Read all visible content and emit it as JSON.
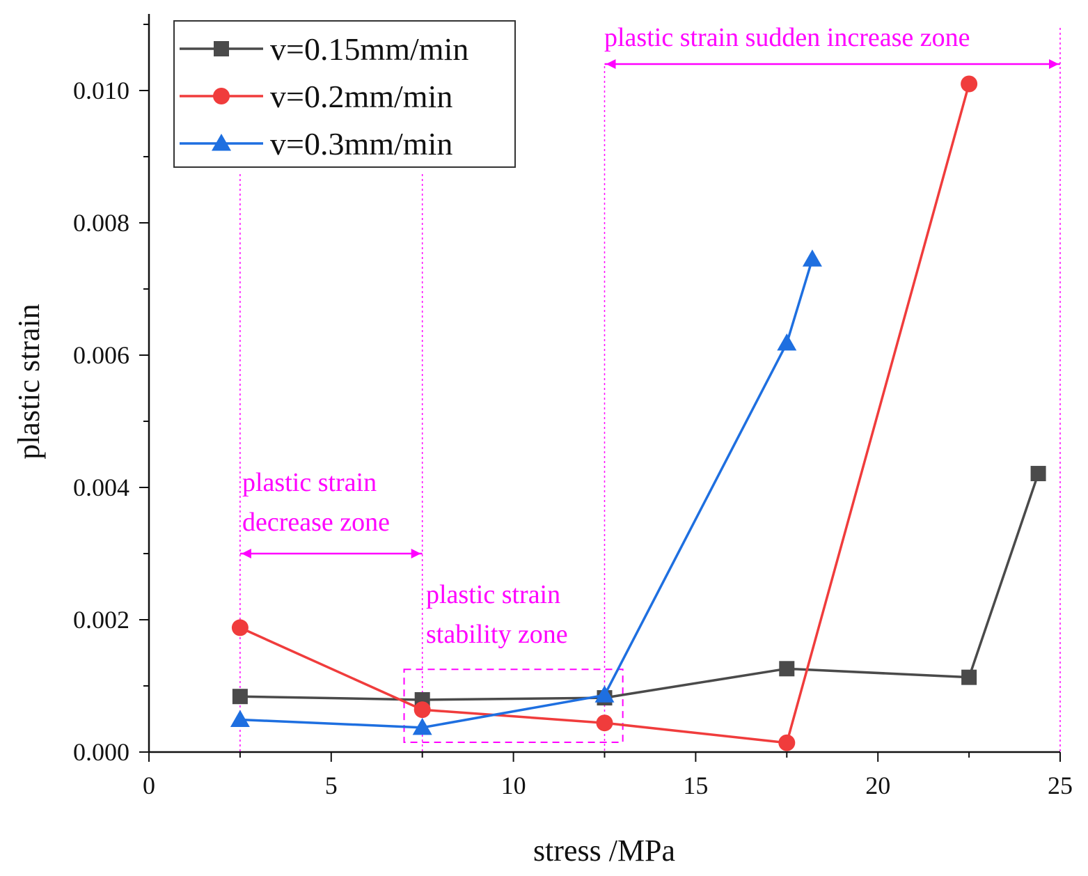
{
  "chart_data": {
    "type": "line",
    "xlabel": "stress /MPa",
    "ylabel": "plastic strain",
    "xlim": [
      0,
      25
    ],
    "ylim": [
      0,
      0.011
    ],
    "x_ticks": [
      0,
      5,
      10,
      15,
      20,
      25
    ],
    "y_ticks": [
      0.0,
      0.002,
      0.004,
      0.006,
      0.008,
      0.01
    ],
    "x_tick_labels": [
      "0",
      "5",
      "10",
      "15",
      "20",
      "25"
    ],
    "y_tick_labels": [
      "0.000",
      "0.002",
      "0.004",
      "0.006",
      "0.008",
      "0.010"
    ],
    "legend_position": "top-left",
    "series": [
      {
        "name": "v=0.15mm/min",
        "color": "#4a4a4a",
        "marker": "square",
        "points": [
          [
            2.5,
            0.00084
          ],
          [
            7.5,
            0.00079
          ],
          [
            12.5,
            0.00082
          ],
          [
            17.5,
            0.00126
          ],
          [
            22.5,
            0.00113
          ],
          [
            24.4,
            0.00421
          ]
        ]
      },
      {
        "name": "v=0.2mm/min",
        "color": "#f03c3c",
        "marker": "circle",
        "points": [
          [
            2.5,
            0.00188
          ],
          [
            7.5,
            0.00064
          ],
          [
            12.5,
            0.00044
          ],
          [
            17.5,
            0.00014
          ],
          [
            22.5,
            0.0101
          ]
        ]
      },
      {
        "name": "v=0.3mm/min",
        "color": "#1e6fe0",
        "marker": "triangle",
        "points": [
          [
            2.5,
            0.00049
          ],
          [
            7.5,
            0.00037
          ],
          [
            12.5,
            0.00086
          ],
          [
            17.5,
            0.00618
          ],
          [
            18.2,
            0.00745
          ]
        ]
      }
    ],
    "annotations": {
      "color": "#ff00ff",
      "vlines_x": [
        2.5,
        7.5,
        12.5,
        25
      ],
      "decrease_zone": {
        "label_line1": "plastic strain",
        "label_line2": "decrease zone",
        "x_range": [
          2.5,
          7.5
        ],
        "arrow_y": 0.003
      },
      "stability_zone": {
        "label_line1": "plastic strain",
        "label_line2": "stability zone",
        "box_x": [
          7.0,
          13.0
        ],
        "box_y": [
          0.0,
          0.00125
        ]
      },
      "sudden_increase_zone": {
        "label": "plastic strain sudden increase zone",
        "x_range": [
          12.5,
          25
        ],
        "arrow_y": 0.0103
      }
    }
  }
}
